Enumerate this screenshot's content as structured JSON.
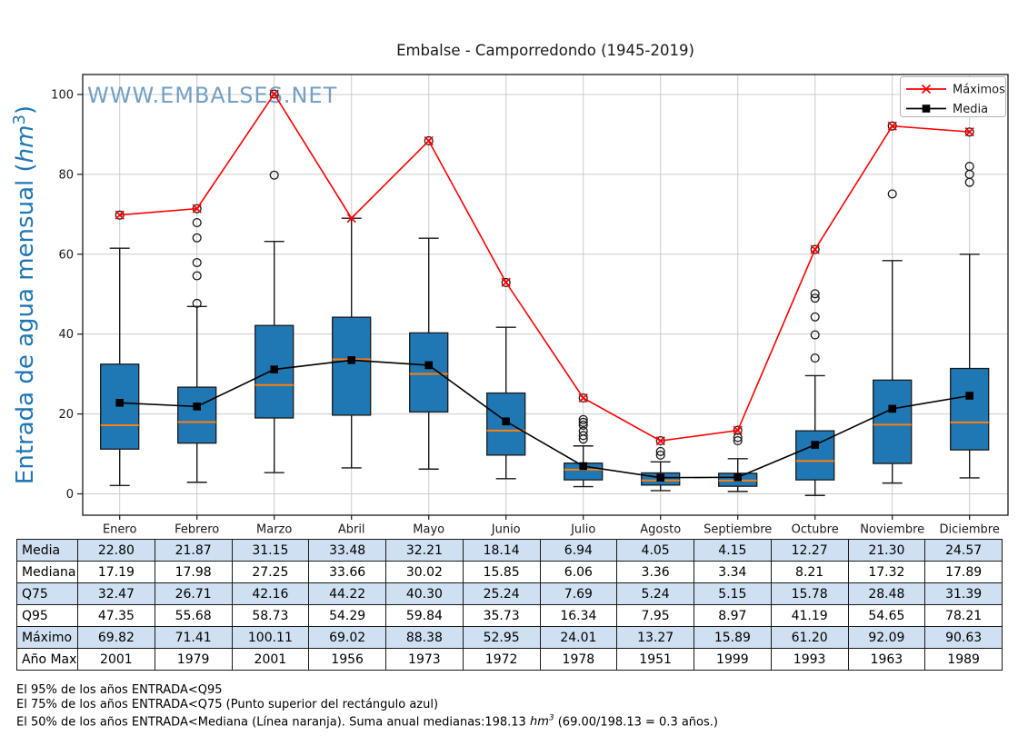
{
  "figure": {
    "title": "Embalse - Camporredondo (1945-2019)",
    "watermark": "WWW.EMBALSES.NET",
    "watermark_color": "#6596be",
    "ylabel_color": "#1f77b4"
  },
  "chart_data": {
    "type": "boxplot",
    "title": "Embalse - Camporredondo (1945-2019)",
    "ylabel_parts": {
      "before": "Entrada de agua mensual (",
      "unit": "hm",
      "sup": "3",
      "after": ")"
    },
    "xlabel": "",
    "categories": [
      "Enero",
      "Febrero",
      "Marzo",
      "Abril",
      "Mayo",
      "Junio",
      "Julio",
      "Agosto",
      "Septiembre",
      "Octubre",
      "Noviembre",
      "Diciembre"
    ],
    "yticks": [
      0,
      20,
      40,
      60,
      80,
      100
    ],
    "ylim": [
      -5.3,
      105
    ],
    "grid": true,
    "legend_position": "upper right",
    "series": [
      {
        "name": "Máximos",
        "color": "#ff0000",
        "marker": "x",
        "values": [
          69.82,
          71.41,
          100.11,
          69.02,
          88.38,
          52.95,
          24.01,
          13.27,
          15.89,
          61.2,
          92.09,
          90.63
        ]
      },
      {
        "name": "Media",
        "color": "#000000",
        "marker": "square",
        "values": [
          22.8,
          21.87,
          31.15,
          33.48,
          32.21,
          18.14,
          6.94,
          4.05,
          4.15,
          12.27,
          21.3,
          24.57
        ]
      }
    ],
    "boxes": {
      "fill": "#1f77b4",
      "median_color": "#ff7f0e",
      "median": [
        17.19,
        17.98,
        27.25,
        33.66,
        30.02,
        15.85,
        6.06,
        3.36,
        3.34,
        8.21,
        17.32,
        17.89
      ],
      "q1": [
        11.2,
        12.7,
        19.0,
        19.7,
        20.5,
        9.7,
        3.5,
        2.2,
        1.9,
        3.5,
        7.6,
        11.0
      ],
      "q3": [
        32.47,
        26.71,
        42.16,
        44.22,
        40.3,
        25.24,
        7.69,
        5.24,
        5.15,
        15.78,
        28.48,
        31.39
      ],
      "whisker_low": [
        2.1,
        2.9,
        5.3,
        6.5,
        6.2,
        3.8,
        1.8,
        0.8,
        0.6,
        -0.4,
        2.7,
        4.0
      ],
      "whisker_high": [
        61.5,
        46.9,
        63.2,
        69.0,
        64.0,
        41.7,
        12.0,
        8.0,
        8.8,
        29.6,
        58.4,
        60.0
      ],
      "outliers": [
        [
          69.8
        ],
        [
          71.4,
          67.9,
          64.1,
          57.9,
          54.6,
          47.7
        ],
        [
          100.1,
          79.8
        ],
        [],
        [
          88.4
        ],
        [
          52.9
        ],
        [
          24.0,
          18.6,
          17.9,
          17.2,
          15.7,
          14.6,
          13.7
        ],
        [
          13.3,
          10.6,
          9.7
        ],
        [
          15.9,
          14.1,
          13.3
        ],
        [
          61.2,
          50.1,
          49.0,
          44.3,
          39.8,
          34.0
        ],
        [
          92.1,
          75.1
        ],
        [
          90.6,
          82.0,
          80.0,
          78.0
        ]
      ]
    }
  },
  "table": {
    "alt_row_color": "#cfe0f2",
    "rows": [
      {
        "label": "Media",
        "values": [
          "22.80",
          "21.87",
          "31.15",
          "33.48",
          "32.21",
          "18.14",
          "6.94",
          "4.05",
          "4.15",
          "12.27",
          "21.30",
          "24.57"
        ]
      },
      {
        "label": "Mediana",
        "values": [
          "17.19",
          "17.98",
          "27.25",
          "33.66",
          "30.02",
          "15.85",
          "6.06",
          "3.36",
          "3.34",
          "8.21",
          "17.32",
          "17.89"
        ]
      },
      {
        "label": "Q75",
        "values": [
          "32.47",
          "26.71",
          "42.16",
          "44.22",
          "40.30",
          "25.24",
          "7.69",
          "5.24",
          "5.15",
          "15.78",
          "28.48",
          "31.39"
        ]
      },
      {
        "label": "Q95",
        "values": [
          "47.35",
          "55.68",
          "58.73",
          "54.29",
          "59.84",
          "35.73",
          "16.34",
          "7.95",
          "8.97",
          "41.19",
          "54.65",
          "78.21"
        ]
      },
      {
        "label": "Máximo",
        "values": [
          "69.82",
          "71.41",
          "100.11",
          "69.02",
          "88.38",
          "52.95",
          "24.01",
          "13.27",
          "15.89",
          "61.20",
          "92.09",
          "90.63"
        ]
      },
      {
        "label": "Año Max",
        "values": [
          "2001",
          "1979",
          "2001",
          "1956",
          "1973",
          "1972",
          "1978",
          "1951",
          "1999",
          "1993",
          "1963",
          "1989"
        ]
      }
    ]
  },
  "footer": {
    "line1": "El 95% de los años ENTRADA<Q95",
    "line2": "El 75% de los años ENTRADA<Q75 (Punto superior del rectángulo azul)",
    "line3_before": "El 50% de los años ENTRADA<Mediana (Línea naranja). Suma anual medianas:198.13 ",
    "line3_unit": "hm",
    "line3_sup": "3",
    "line3_after": " (69.00/198.13 = 0.3 años.)"
  }
}
